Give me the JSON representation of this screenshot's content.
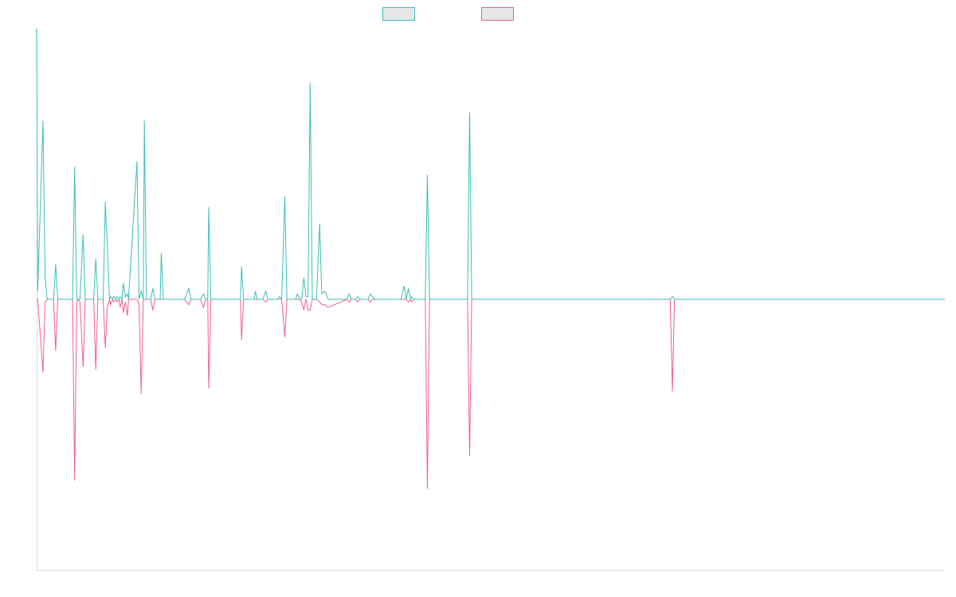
{
  "chart_data": {
    "type": "line",
    "title": "",
    "xlabel": "",
    "ylabel": "",
    "grid": false,
    "legend_position": "top-center",
    "colors": {
      "series_a": "#3cbfb4",
      "series_b": "#f0608c",
      "legend_fill": "#e6e6e6",
      "axis": "#dddddd"
    },
    "xlim": [
      0,
      860
    ],
    "ylim": [
      -100,
      100
    ],
    "series": [
      {
        "name": "",
        "points": [
          [
            0,
            100
          ],
          [
            1,
            3
          ],
          [
            6,
            66
          ],
          [
            8,
            8
          ],
          [
            10,
            0
          ],
          [
            16,
            0
          ],
          [
            18,
            13
          ],
          [
            20,
            0
          ],
          [
            34,
            0
          ],
          [
            36,
            49
          ],
          [
            38,
            0
          ],
          [
            41,
            0
          ],
          [
            44,
            24
          ],
          [
            46,
            0
          ],
          [
            54,
            0
          ],
          [
            56,
            15
          ],
          [
            58,
            0
          ],
          [
            63,
            0
          ],
          [
            65,
            36
          ],
          [
            67,
            19
          ],
          [
            69,
            0
          ],
          [
            70,
            1
          ],
          [
            72,
            0
          ],
          [
            73,
            1
          ],
          [
            75,
            0
          ],
          [
            76,
            1
          ],
          [
            78,
            0
          ],
          [
            79,
            1
          ],
          [
            81,
            0
          ],
          [
            82,
            6
          ],
          [
            84,
            1
          ],
          [
            86,
            2
          ],
          [
            87,
            0
          ],
          [
            95,
            51
          ],
          [
            97,
            0
          ],
          [
            99,
            3
          ],
          [
            101,
            0
          ],
          [
            102,
            66
          ],
          [
            104,
            0
          ],
          [
            108,
            0
          ],
          [
            110,
            4
          ],
          [
            112,
            0
          ],
          [
            117,
            0
          ],
          [
            118,
            17
          ],
          [
            120,
            0
          ],
          [
            124,
            0
          ],
          [
            128,
            0
          ],
          [
            140,
            0
          ],
          [
            144,
            4
          ],
          [
            146,
            0
          ],
          [
            155,
            0
          ],
          [
            158,
            2
          ],
          [
            160,
            0
          ],
          [
            162,
            0
          ],
          [
            163,
            34
          ],
          [
            165,
            0
          ],
          [
            193,
            0
          ],
          [
            194,
            12
          ],
          [
            196,
            0
          ],
          [
            206,
            0
          ],
          [
            207,
            3
          ],
          [
            209,
            0
          ],
          [
            214,
            0
          ],
          [
            217,
            3
          ],
          [
            219,
            0
          ],
          [
            228,
            0
          ],
          [
            230,
            1
          ],
          [
            232,
            0
          ],
          [
            235,
            38
          ],
          [
            237,
            0
          ],
          [
            245,
            0
          ],
          [
            247,
            2
          ],
          [
            249,
            0
          ],
          [
            251,
            0
          ],
          [
            253,
            8
          ],
          [
            255,
            1
          ],
          [
            257,
            1
          ],
          [
            259,
            80
          ],
          [
            261,
            0
          ],
          [
            265,
            0
          ],
          [
            268,
            28
          ],
          [
            270,
            2
          ],
          [
            273,
            3
          ],
          [
            276,
            0
          ],
          [
            294,
            0
          ],
          [
            296,
            2
          ],
          [
            298,
            0
          ],
          [
            302,
            0
          ],
          [
            304,
            1
          ],
          [
            306,
            0
          ],
          [
            314,
            0
          ],
          [
            316,
            2
          ],
          [
            318,
            1
          ],
          [
            320,
            0
          ],
          [
            345,
            0
          ],
          [
            348,
            5
          ],
          [
            350,
            0
          ],
          [
            352,
            4
          ],
          [
            354,
            0
          ],
          [
            355,
            1
          ],
          [
            357,
            0
          ],
          [
            368,
            0
          ],
          [
            370,
            46
          ],
          [
            372,
            0
          ],
          [
            408,
            0
          ],
          [
            410,
            69
          ],
          [
            412,
            0
          ],
          [
            600,
            0
          ],
          [
            602,
            1
          ],
          [
            604,
            0
          ],
          [
            860,
            0
          ]
        ]
      },
      {
        "name": "",
        "points": [
          [
            0,
            0
          ],
          [
            1,
            0
          ],
          [
            6,
            -27
          ],
          [
            8,
            -1
          ],
          [
            10,
            0
          ],
          [
            16,
            0
          ],
          [
            18,
            -19
          ],
          [
            20,
            0
          ],
          [
            34,
            0
          ],
          [
            36,
            -67
          ],
          [
            38,
            -1
          ],
          [
            39,
            0
          ],
          [
            41,
            -1
          ],
          [
            44,
            -25
          ],
          [
            46,
            0
          ],
          [
            54,
            0
          ],
          [
            56,
            -26
          ],
          [
            58,
            0
          ],
          [
            63,
            0
          ],
          [
            65,
            -18
          ],
          [
            67,
            -3
          ],
          [
            69,
            0
          ],
          [
            70,
            -2
          ],
          [
            72,
            0
          ],
          [
            73,
            -1
          ],
          [
            75,
            0
          ],
          [
            76,
            -1
          ],
          [
            78,
            0
          ],
          [
            79,
            -3
          ],
          [
            81,
            0
          ],
          [
            82,
            -5
          ],
          [
            84,
            -1
          ],
          [
            86,
            -6
          ],
          [
            87,
            0
          ],
          [
            95,
            0
          ],
          [
            97,
            -2
          ],
          [
            99,
            -35
          ],
          [
            101,
            0
          ],
          [
            102,
            0
          ],
          [
            104,
            0
          ],
          [
            108,
            0
          ],
          [
            110,
            -4
          ],
          [
            112,
            0
          ],
          [
            117,
            0
          ],
          [
            118,
            0
          ],
          [
            120,
            0
          ],
          [
            124,
            0
          ],
          [
            128,
            0
          ],
          [
            140,
            0
          ],
          [
            144,
            -2
          ],
          [
            146,
            0
          ],
          [
            155,
            0
          ],
          [
            158,
            -3
          ],
          [
            160,
            0
          ],
          [
            162,
            0
          ],
          [
            163,
            -33
          ],
          [
            165,
            0
          ],
          [
            193,
            0
          ],
          [
            194,
            -15
          ],
          [
            196,
            0
          ],
          [
            206,
            0
          ],
          [
            207,
            0
          ],
          [
            209,
            0
          ],
          [
            214,
            0
          ],
          [
            217,
            -1
          ],
          [
            219,
            0
          ],
          [
            228,
            0
          ],
          [
            230,
            0
          ],
          [
            232,
            0
          ],
          [
            235,
            -14
          ],
          [
            237,
            0
          ],
          [
            245,
            0
          ],
          [
            247,
            0
          ],
          [
            249,
            0
          ],
          [
            251,
            -1
          ],
          [
            253,
            -4
          ],
          [
            255,
            0
          ],
          [
            257,
            -4
          ],
          [
            259,
            -4
          ],
          [
            261,
            0
          ],
          [
            265,
            0
          ],
          [
            268,
            -1
          ],
          [
            270,
            -2
          ],
          [
            273,
            -2
          ],
          [
            276,
            -3
          ],
          [
            294,
            0
          ],
          [
            296,
            -1
          ],
          [
            298,
            0
          ],
          [
            302,
            0
          ],
          [
            304,
            -1
          ],
          [
            306,
            0
          ],
          [
            314,
            0
          ],
          [
            316,
            -1
          ],
          [
            318,
            0
          ],
          [
            320,
            0
          ],
          [
            345,
            0
          ],
          [
            348,
            0
          ],
          [
            350,
            0
          ],
          [
            352,
            -1
          ],
          [
            354,
            0
          ],
          [
            355,
            -1
          ],
          [
            357,
            0
          ],
          [
            368,
            0
          ],
          [
            370,
            -70
          ],
          [
            372,
            0
          ],
          [
            408,
            0
          ],
          [
            410,
            -58
          ],
          [
            412,
            0
          ],
          [
            600,
            0
          ],
          [
            602,
            -34
          ],
          [
            604,
            0
          ],
          [
            860,
            0
          ]
        ]
      }
    ]
  }
}
